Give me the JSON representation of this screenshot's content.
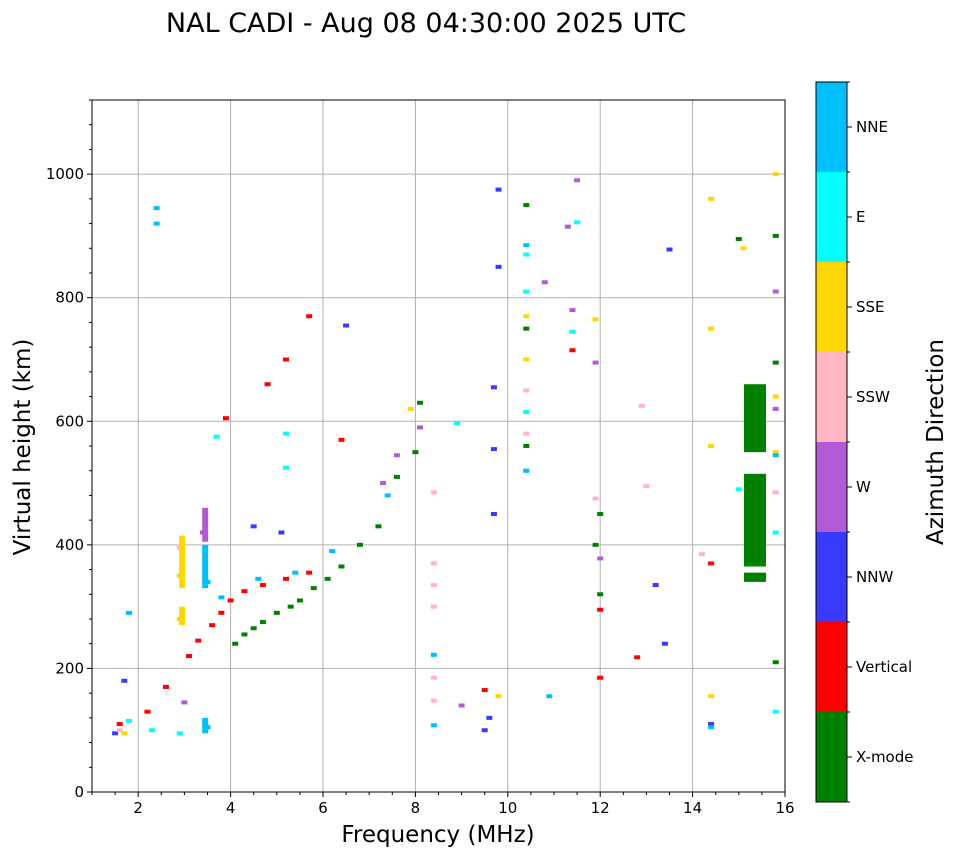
{
  "chart_data": {
    "type": "scatter",
    "title": "NAL CADI - Aug 08 04:30:00 2025 UTC",
    "xlabel": "Frequency (MHz)",
    "ylabel": "Virtual height (km)",
    "xlim": [
      1,
      16
    ],
    "ylim": [
      0,
      1120
    ],
    "xticks": [
      2,
      4,
      6,
      8,
      10,
      12,
      14,
      16
    ],
    "yticks": [
      0,
      200,
      400,
      600,
      800,
      1000
    ],
    "grid": true,
    "colorbar": {
      "label": "Azimuth Direction",
      "entries": [
        {
          "label": "X-mode",
          "color": "#008000"
        },
        {
          "label": "Vertical",
          "color": "#ff0000"
        },
        {
          "label": "NNW",
          "color": "#3a3aff"
        },
        {
          "label": "W",
          "color": "#b35ad6"
        },
        {
          "label": "SSW",
          "color": "#ffb6c1"
        },
        {
          "label": "SSE",
          "color": "#ffd700"
        },
        {
          "label": "E",
          "color": "#00ffff"
        },
        {
          "label": "NNE",
          "color": "#00bfff"
        }
      ]
    },
    "series": [
      {
        "name": "X-mode",
        "points": [
          [
            4.1,
            240
          ],
          [
            4.3,
            255
          ],
          [
            4.5,
            265
          ],
          [
            4.7,
            275
          ],
          [
            5.0,
            290
          ],
          [
            5.3,
            300
          ],
          [
            5.5,
            310
          ],
          [
            5.8,
            330
          ],
          [
            6.1,
            345
          ],
          [
            6.4,
            365
          ],
          [
            6.8,
            400
          ],
          [
            7.2,
            430
          ],
          [
            7.6,
            510
          ],
          [
            8.0,
            550
          ],
          [
            8.1,
            630
          ],
          [
            10.4,
            560
          ],
          [
            10.4,
            750
          ],
          [
            10.4,
            950
          ],
          [
            11.9,
            400
          ],
          [
            12.0,
            450
          ],
          [
            12.0,
            320
          ],
          [
            15.0,
            895
          ],
          [
            15.8,
            900
          ],
          [
            15.8,
            695
          ],
          [
            15.8,
            210
          ]
        ]
      },
      {
        "name": "Vertical",
        "points": [
          [
            1.6,
            110
          ],
          [
            2.2,
            130
          ],
          [
            2.6,
            170
          ],
          [
            3.1,
            220
          ],
          [
            3.3,
            245
          ],
          [
            3.6,
            270
          ],
          [
            3.8,
            290
          ],
          [
            4.0,
            310
          ],
          [
            4.3,
            325
          ],
          [
            4.7,
            335
          ],
          [
            5.2,
            345
          ],
          [
            5.7,
            355
          ],
          [
            3.9,
            605
          ],
          [
            4.8,
            660
          ],
          [
            5.2,
            700
          ],
          [
            5.7,
            770
          ],
          [
            6.4,
            570
          ],
          [
            9.5,
            165
          ],
          [
            11.4,
            715
          ],
          [
            12.0,
            295
          ],
          [
            12.0,
            185
          ],
          [
            12.8,
            218
          ],
          [
            14.4,
            370
          ]
        ]
      },
      {
        "name": "NNW",
        "points": [
          [
            1.5,
            95
          ],
          [
            1.7,
            180
          ],
          [
            4.5,
            430
          ],
          [
            5.1,
            420
          ],
          [
            6.5,
            755
          ],
          [
            9.5,
            100
          ],
          [
            9.6,
            120
          ],
          [
            9.7,
            450
          ],
          [
            9.7,
            555
          ],
          [
            9.7,
            655
          ],
          [
            9.8,
            850
          ],
          [
            9.8,
            975
          ],
          [
            13.2,
            335
          ],
          [
            13.4,
            240
          ],
          [
            13.5,
            878
          ],
          [
            14.4,
            110
          ]
        ]
      },
      {
        "name": "W",
        "points": [
          [
            3.0,
            145
          ],
          [
            3.4,
            420
          ],
          [
            7.3,
            500
          ],
          [
            7.6,
            545
          ],
          [
            8.1,
            590
          ],
          [
            9.0,
            140
          ],
          [
            10.8,
            825
          ],
          [
            11.3,
            915
          ],
          [
            11.4,
            780
          ],
          [
            11.5,
            990
          ],
          [
            11.9,
            695
          ],
          [
            12.0,
            378
          ],
          [
            15.8,
            620
          ],
          [
            15.8,
            810
          ]
        ]
      },
      {
        "name": "SSW",
        "points": [
          [
            1.6,
            100
          ],
          [
            2.9,
            395
          ],
          [
            8.4,
            485
          ],
          [
            8.4,
            370
          ],
          [
            8.4,
            335
          ],
          [
            8.4,
            300
          ],
          [
            8.4,
            185
          ],
          [
            8.4,
            148
          ],
          [
            10.4,
            580
          ],
          [
            10.4,
            650
          ],
          [
            11.9,
            475
          ],
          [
            12.9,
            625
          ],
          [
            13.0,
            495
          ],
          [
            14.2,
            385
          ],
          [
            15.8,
            485
          ]
        ]
      },
      {
        "name": "SSE",
        "points": [
          [
            1.7,
            95
          ],
          [
            2.9,
            350
          ],
          [
            2.9,
            280
          ],
          [
            7.9,
            620
          ],
          [
            9.8,
            155
          ],
          [
            10.4,
            700
          ],
          [
            10.4,
            770
          ],
          [
            11.9,
            765
          ],
          [
            14.4,
            960
          ],
          [
            14.4,
            750
          ],
          [
            14.4,
            560
          ],
          [
            14.4,
            155
          ],
          [
            15.1,
            880
          ],
          [
            15.8,
            1000
          ],
          [
            15.8,
            640
          ],
          [
            15.8,
            550
          ]
        ]
      },
      {
        "name": "E",
        "points": [
          [
            1.8,
            115
          ],
          [
            2.3,
            100
          ],
          [
            2.9,
            95
          ],
          [
            3.7,
            575
          ],
          [
            5.2,
            525
          ],
          [
            5.2,
            580
          ],
          [
            8.9,
            597
          ],
          [
            10.4,
            520
          ],
          [
            10.4,
            615
          ],
          [
            10.4,
            870
          ],
          [
            10.4,
            810
          ],
          [
            11.4,
            745
          ],
          [
            11.5,
            922
          ],
          [
            15.0,
            490
          ],
          [
            15.8,
            420
          ],
          [
            15.8,
            130
          ]
        ]
      },
      {
        "name": "NNE",
        "points": [
          [
            1.8,
            290
          ],
          [
            2.4,
            920
          ],
          [
            2.4,
            945
          ],
          [
            3.5,
            105
          ],
          [
            3.5,
            340
          ],
          [
            3.8,
            315
          ],
          [
            4.6,
            345
          ],
          [
            5.4,
            355
          ],
          [
            6.2,
            390
          ],
          [
            7.4,
            480
          ],
          [
            8.4,
            108
          ],
          [
            8.4,
            222
          ],
          [
            10.4,
            520
          ],
          [
            10.4,
            885
          ],
          [
            10.9,
            155
          ],
          [
            14.4,
            105
          ],
          [
            15.8,
            545
          ]
        ]
      }
    ],
    "bars": [
      {
        "name": "X-mode",
        "x": 15.35,
        "y_from": 550,
        "y_to": 660
      },
      {
        "name": "X-mode",
        "x": 15.35,
        "y_from": 365,
        "y_to": 515
      },
      {
        "name": "X-mode",
        "x": 15.35,
        "y_from": 340,
        "y_to": 355
      },
      {
        "name": "NNE",
        "x": 3.45,
        "y_from": 330,
        "y_to": 400
      },
      {
        "name": "W",
        "x": 3.45,
        "y_from": 405,
        "y_to": 460
      },
      {
        "name": "SSE",
        "x": 2.95,
        "y_from": 330,
        "y_to": 415
      },
      {
        "name": "SSE",
        "x": 2.95,
        "y_from": 270,
        "y_to": 300
      },
      {
        "name": "NNE",
        "x": 3.45,
        "y_from": 95,
        "y_to": 120
      }
    ]
  }
}
